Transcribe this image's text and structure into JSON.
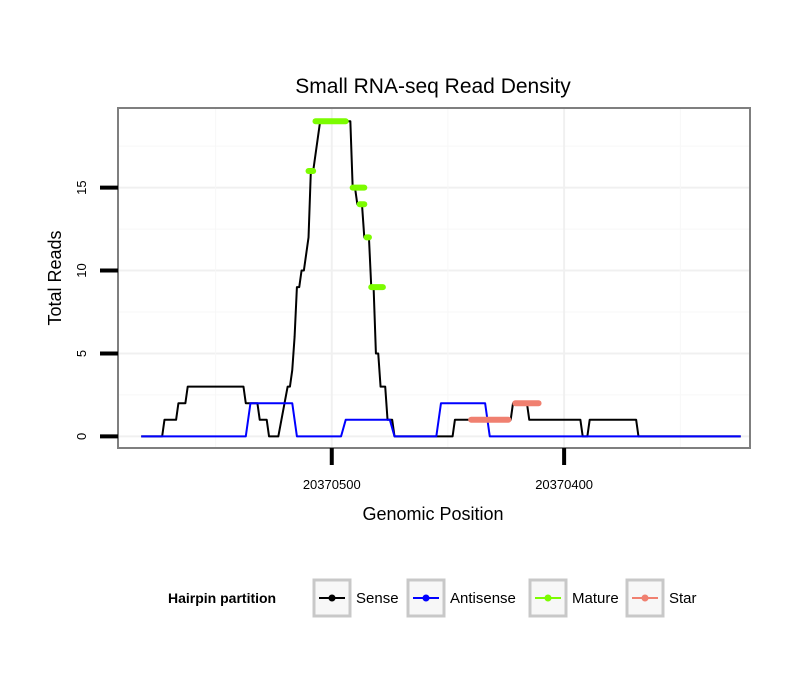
{
  "chart_data": {
    "type": "line",
    "title": "Small RNA-seq Read Density",
    "xlabel": "Genomic Position",
    "ylabel": "Total Reads",
    "x_reversed": true,
    "xlim": [
      20370592,
      20370320
    ],
    "ylim": [
      -0.7,
      19.8
    ],
    "x_ticks": [
      {
        "value": 20370500,
        "label": "20370500"
      },
      {
        "value": 20370400,
        "label": "20370400"
      }
    ],
    "y_ticks": [
      {
        "value": 0,
        "label": "0"
      },
      {
        "value": 5,
        "label": "5"
      },
      {
        "value": 10,
        "label": "10"
      },
      {
        "value": 15,
        "label": "15"
      }
    ],
    "legend": {
      "title": "Hairpin partition",
      "position": "bottom",
      "entries": [
        {
          "name": "Sense",
          "color": "#000000"
        },
        {
          "name": "Antisense",
          "color": "#0000ff"
        },
        {
          "name": "Mature",
          "color": "#7cfc00"
        },
        {
          "name": "Star",
          "color": "#f08070"
        }
      ]
    },
    "series": [
      {
        "name": "Sense",
        "color": "#000000",
        "x": [
          20370582,
          20370573,
          20370572,
          20370567,
          20370566,
          20370563,
          20370562,
          20370556,
          20370538,
          20370537,
          20370532,
          20370531,
          20370528,
          20370527,
          20370524,
          20370523,
          20370519,
          20370518,
          20370517,
          20370516,
          20370515,
          20370514,
          20370513,
          20370512,
          20370510,
          20370509,
          20370508,
          20370505,
          20370504,
          20370500,
          20370499,
          20370492,
          20370491,
          20370490,
          20370489,
          20370487,
          20370486,
          20370484,
          20370483,
          20370482,
          20370481,
          20370480,
          20370479,
          20370477,
          20370476,
          20370474,
          20370473,
          20370448,
          20370447,
          20370423,
          20370422,
          20370416,
          20370415,
          20370409,
          20370408,
          20370393,
          20370392,
          20370390,
          20370389,
          20370369,
          20370368,
          20370324
        ],
        "y": [
          0,
          0,
          1,
          1,
          2,
          2,
          3,
          3,
          3,
          2,
          2,
          1,
          1,
          0,
          0,
          0,
          3,
          3,
          4,
          6,
          9,
          9,
          10,
          10,
          12,
          16,
          16,
          19,
          19,
          19,
          19,
          19,
          15,
          15,
          14,
          14,
          12,
          12,
          9,
          9,
          5,
          5,
          3,
          3,
          1,
          1,
          0,
          0,
          1,
          1,
          2,
          2,
          1,
          1,
          1,
          1,
          0,
          0,
          1,
          1,
          0,
          0
        ]
      },
      {
        "name": "Antisense",
        "color": "#0000ff",
        "x": [
          20370582,
          20370537,
          20370535,
          20370517,
          20370515,
          20370496,
          20370494,
          20370475,
          20370473,
          20370455,
          20370453,
          20370434,
          20370432,
          20370412,
          20370410,
          20370324
        ],
        "y": [
          0,
          0,
          2,
          2,
          0,
          0,
          1,
          1,
          0,
          0,
          2,
          2,
          0,
          0,
          0,
          0
        ]
      },
      {
        "name": "Mature",
        "color": "#7cfc00",
        "segments": [
          {
            "x": [
              20370510,
              20370508
            ],
            "y": 16
          },
          {
            "x": [
              20370507,
              20370494
            ],
            "y": 19
          },
          {
            "x": [
              20370491,
              20370486
            ],
            "y": 15
          },
          {
            "x": [
              20370488,
              20370486
            ],
            "y": 14
          },
          {
            "x": [
              20370485,
              20370484
            ],
            "y": 12
          },
          {
            "x": [
              20370483,
              20370478
            ],
            "y": 9
          }
        ]
      },
      {
        "name": "Star",
        "color": "#f08070",
        "segments": [
          {
            "x": [
              20370440,
              20370424
            ],
            "y": 1
          },
          {
            "x": [
              20370421,
              20370411
            ],
            "y": 2
          }
        ]
      }
    ]
  }
}
